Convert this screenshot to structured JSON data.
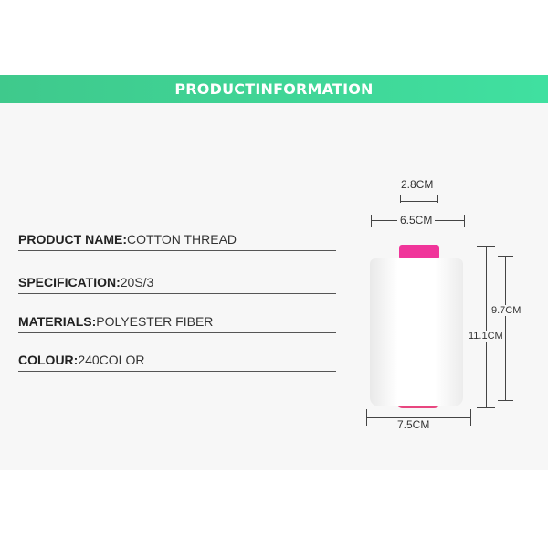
{
  "banner": {
    "title": "PRODUCTINFORMATION"
  },
  "specs": [
    {
      "label": "PRODUCT NAME:",
      "value": "COTTON THREAD"
    },
    {
      "label": "SPECIFICATION:",
      "value": "20S/3"
    },
    {
      "label": "MATERIALS:",
      "value": "POLYESTER FIBER"
    },
    {
      "label": "COLOUR:",
      "value": "240COLOR"
    }
  ],
  "dimensions": {
    "top_inner": "2.8CM",
    "top_outer": "6.5CM",
    "height_total": "11.1CM",
    "height_body": "9.7CM",
    "bottom_width": "7.5CM"
  },
  "colors": {
    "banner": "#3fd593",
    "cap": "#f0359a"
  }
}
